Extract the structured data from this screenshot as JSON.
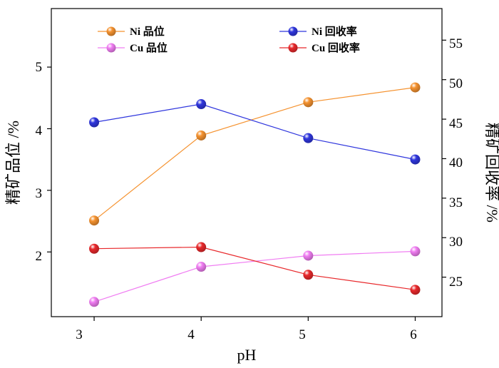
{
  "chart_data": {
    "type": "line",
    "xlabel": "pH",
    "ylabel_left": "精矿品位 /%",
    "ylabel_right": "精矿回收率 /%",
    "x": [
      3,
      4,
      5,
      6
    ],
    "x_ticks": [
      "3",
      "4",
      "5",
      "6"
    ],
    "xlim": [
      2.6,
      6.25
    ],
    "ylim_left": [
      0.95,
      5.95
    ],
    "ylim_right": [
      20.0,
      59.0
    ],
    "left_ticks": [
      "2",
      "3",
      "4",
      "5"
    ],
    "right_ticks": [
      "25",
      "30",
      "35",
      "40",
      "45",
      "50",
      "55"
    ],
    "series": [
      {
        "name": "Ni 品位",
        "axis": "left",
        "color": "#f5922f",
        "values": [
          2.51,
          3.89,
          4.43,
          4.67
        ]
      },
      {
        "name": "Cu 品位",
        "axis": "left",
        "color": "#f07df2",
        "values": [
          1.19,
          1.76,
          1.94,
          2.01
        ]
      },
      {
        "name": "Ni 回收率",
        "axis": "right",
        "color": "#2f36dd",
        "values": [
          44.6,
          46.9,
          42.6,
          39.9
        ]
      },
      {
        "name": "Cu 回收率",
        "axis": "right",
        "color": "#e8282b",
        "values": [
          28.6,
          28.8,
          25.3,
          23.4
        ]
      }
    ]
  }
}
